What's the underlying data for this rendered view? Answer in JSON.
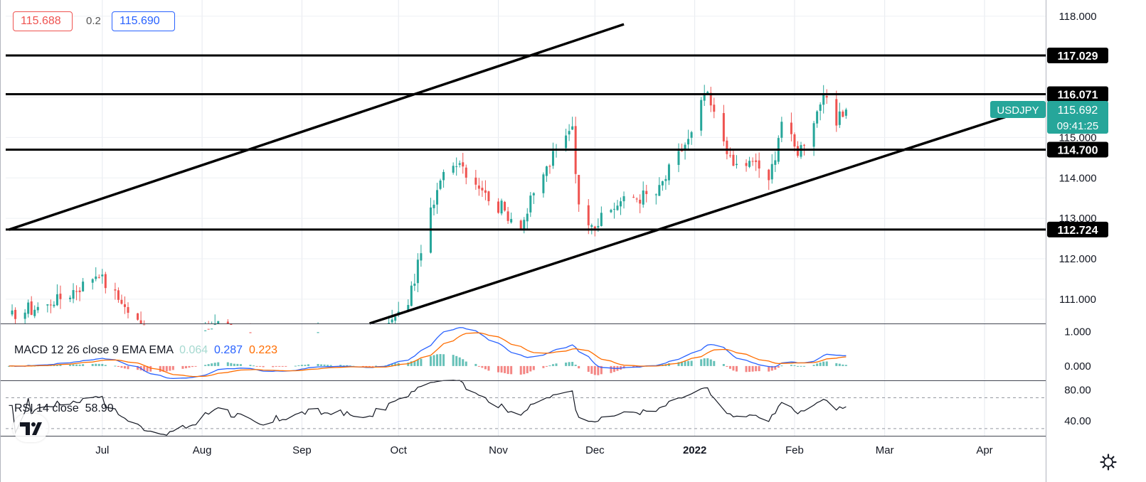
{
  "quote": {
    "bid": "115.688",
    "spread": "0.2",
    "ask": "115.690"
  },
  "price_labels": [
    {
      "value": "117.029",
      "tone": "dark"
    },
    {
      "value": "116.071",
      "tone": "dark"
    },
    {
      "value": "114.700",
      "tone": "dark"
    },
    {
      "value": "112.724",
      "tone": "dark"
    }
  ],
  "symbol_tag": {
    "symbol": "USDJPY",
    "price": "115.692",
    "countdown": "09:41:25",
    "color": "#26a69a"
  },
  "macd": {
    "title": "MACD 12 26 close 9 EMA EMA",
    "hist": "0.064",
    "macd": "0.287",
    "signal": "0.223"
  },
  "rsi": {
    "title": "RSI 14 close",
    "value": "58.90"
  },
  "colors": {
    "up": "#26a69a",
    "down": "#ef5350",
    "macd": "#2962ff",
    "signal": "#ff6d00"
  },
  "chart_data": {
    "type": "candlestick",
    "symbol": "USDJPY",
    "interval": "daily",
    "x_axis_labels": [
      "Jul",
      "Aug",
      "Sep",
      "Oct",
      "Nov",
      "Dec",
      "2022",
      "Feb",
      "Mar",
      "Apr"
    ],
    "y_axis": {
      "ticks": [
        "118.000",
        "117.000",
        "116.000",
        "115.000",
        "114.000",
        "113.000",
        "112.000",
        "111.000"
      ],
      "range": [
        110.4,
        118.4
      ]
    },
    "horizontal_levels": [
      117.029,
      116.071,
      114.7,
      112.724
    ],
    "channel_lines": [
      {
        "name": "upper",
        "from": [
          "2021-06-02",
          112.72
        ],
        "to": [
          "2021-12-10",
          117.8
        ]
      },
      {
        "name": "lower",
        "from": [
          "2021-09-22",
          110.4
        ],
        "to": [
          "2022-04-11",
          115.6
        ]
      }
    ],
    "anchors": [
      [
        "2021-06-02",
        110.6
      ],
      [
        "2021-06-15",
        110.9
      ],
      [
        "2021-06-30",
        111.6
      ],
      [
        "2021-07-08",
        110.8
      ],
      [
        "2021-07-20",
        109.6
      ],
      [
        "2021-07-30",
        109.8
      ],
      [
        "2021-08-06",
        110.5
      ],
      [
        "2021-08-20",
        109.6
      ],
      [
        "2021-09-01",
        110.0
      ],
      [
        "2021-09-10",
        110.0
      ],
      [
        "2021-09-22",
        109.8
      ],
      [
        "2021-10-04",
        110.9
      ],
      [
        "2021-10-08",
        112.2
      ],
      [
        "2021-10-15",
        114.2
      ],
      [
        "2021-10-20",
        114.4
      ],
      [
        "2021-10-28",
        113.6
      ],
      [
        "2021-11-08",
        112.8
      ],
      [
        "2021-11-15",
        114.1
      ],
      [
        "2021-11-24",
        115.3
      ],
      [
        "2021-11-26",
        113.3
      ],
      [
        "2021-12-01",
        112.8
      ],
      [
        "2021-12-10",
        113.5
      ],
      [
        "2021-12-20",
        113.6
      ],
      [
        "2021-12-31",
        115.1
      ],
      [
        "2022-01-04",
        116.1
      ],
      [
        "2022-01-07",
        115.6
      ],
      [
        "2022-01-13",
        114.3
      ],
      [
        "2022-01-20",
        114.4
      ],
      [
        "2022-01-24",
        113.9
      ],
      [
        "2022-01-28",
        115.4
      ],
      [
        "2022-02-02",
        114.6
      ],
      [
        "2022-02-10",
        116.0
      ],
      [
        "2022-02-14",
        115.3
      ],
      [
        "2022-02-17",
        115.69
      ]
    ],
    "rsi_levels": [
      70,
      30
    ],
    "rsi_ticks": [
      "80.00",
      "40.00"
    ],
    "macd_ticks": [
      "1.000",
      "0.000"
    ]
  }
}
